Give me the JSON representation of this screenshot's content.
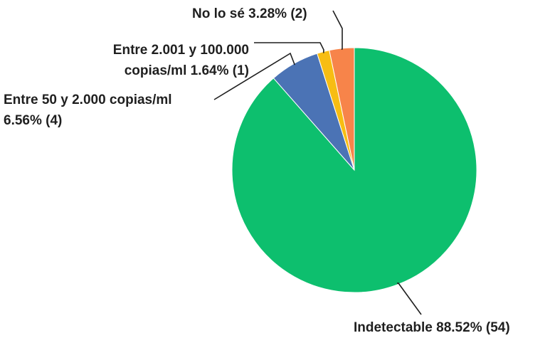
{
  "chart_data": {
    "type": "pie",
    "slices": [
      {
        "name": "Indetectable",
        "percent": 88.52,
        "count": 54,
        "color": "#0dbf6e",
        "label_lines": [
          "Indetectable 88.52% (54)"
        ]
      },
      {
        "name": "Entre 50 y 2.000 copias/ml",
        "percent": 6.56,
        "count": 4,
        "color": "#4b73b5",
        "label_lines": [
          "Entre 50 y 2.000 copias/ml",
          "6.56% (4)"
        ]
      },
      {
        "name": "Entre 2.001 y 100.000 copias/ml",
        "percent": 1.64,
        "count": 1,
        "color": "#f7bd13",
        "label_lines": [
          "Entre 2.001 y 100.000",
          "copias/ml 1.64% (1)"
        ]
      },
      {
        "name": "No lo sé",
        "percent": 3.28,
        "count": 2,
        "color": "#f7844a",
        "label_lines": [
          "No lo sé 3.28% (2)"
        ]
      }
    ],
    "start_angle": "12 o'clock",
    "direction": "clockwise",
    "legend": "none"
  }
}
